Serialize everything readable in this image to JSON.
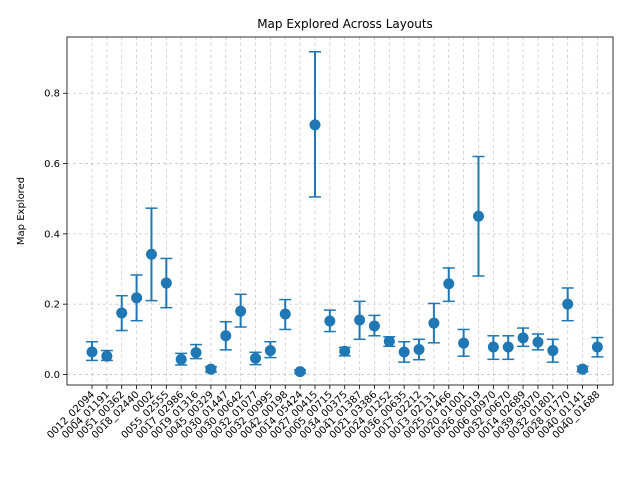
{
  "chart_data": {
    "type": "scatter",
    "title": "Map Explored Across Layouts",
    "xlabel": "",
    "ylabel": "Map Explored",
    "ylim": [
      -0.03,
      0.96
    ],
    "yticks": [
      "0.0",
      "0.2",
      "0.4",
      "0.6",
      "0.8"
    ],
    "grid": true,
    "color": "#1f77b4",
    "categories": [
      "0012_02094",
      "0004_01191",
      "0051_00362",
      "0018_02440",
      "0002",
      "0055_02555",
      "0017_02986",
      "0019_01316",
      "0045_00329",
      "0030_01447",
      "0030_00642",
      "0032_01077",
      "0032_00995",
      "0042_00198",
      "0014_05424",
      "0027_00415",
      "0005_00715",
      "0034_00375",
      "0041_01387",
      "0021_03386",
      "0024_01252",
      "0036_00635",
      "0017_02212",
      "0013_02131",
      "0025_01466",
      "0020_01001",
      "0026_00019",
      "0006_00970",
      "0032_00670",
      "0014_02689",
      "0039_03070",
      "0032_01801",
      "0028_01770",
      "0040_01141",
      "0040_01688"
    ],
    "tick_labels": [
      "0012_02094",
      "0004_01191",
      "0051_00362",
      "0018_02440",
      "0002",
      "0055_02555",
      "0017_02986",
      "0019_01316",
      "0045_00329",
      "0030_01447",
      "0030_00642",
      "0032_01077",
      "0032_00995",
      "0042_00198",
      "0014_05424",
      "0027_00415",
      "0005_00715",
      "0034_00375",
      "0041_01387",
      "0021_03386",
      "0024_01252",
      "0036_00635",
      "0017_02212",
      "0013_02131",
      "0025_01466",
      "0020_01001",
      "0026_00019",
      "0006_00970",
      "0032_00670",
      "0014_02689",
      "0039_03070",
      "0032_01801",
      "0028_01770",
      "0040_01141",
      "0040_01688"
    ],
    "values": [
      0.064,
      0.052,
      0.175,
      0.218,
      0.342,
      0.26,
      0.043,
      0.062,
      0.015,
      0.11,
      0.18,
      0.046,
      0.068,
      0.172,
      0.008,
      0.71,
      0.152,
      0.066,
      0.155,
      0.138,
      0.094,
      0.064,
      0.071,
      0.146,
      0.258,
      0.089,
      0.45,
      0.078,
      0.078,
      0.104,
      0.092,
      0.068,
      0.2,
      0.015,
      0.078
    ],
    "err_low": [
      0.04,
      0.04,
      0.125,
      0.153,
      0.21,
      0.19,
      0.027,
      0.045,
      0.007,
      0.07,
      0.135,
      0.028,
      0.048,
      0.128,
      0.003,
      0.505,
      0.122,
      0.053,
      0.1,
      0.11,
      0.08,
      0.035,
      0.042,
      0.09,
      0.208,
      0.052,
      0.28,
      0.043,
      0.043,
      0.08,
      0.07,
      0.035,
      0.153,
      0.008,
      0.05
    ],
    "err_high": [
      0.093,
      0.068,
      0.224,
      0.283,
      0.473,
      0.33,
      0.06,
      0.085,
      0.022,
      0.15,
      0.228,
      0.063,
      0.093,
      0.213,
      0.013,
      0.918,
      0.183,
      0.077,
      0.208,
      0.168,
      0.107,
      0.093,
      0.1,
      0.202,
      0.303,
      0.128,
      0.62,
      0.11,
      0.11,
      0.132,
      0.115,
      0.1,
      0.246,
      0.023,
      0.105
    ]
  }
}
